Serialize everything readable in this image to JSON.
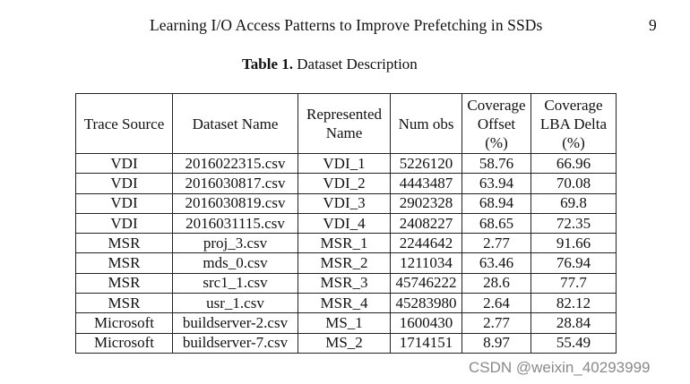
{
  "header": {
    "running_title": "Learning I/O Access Patterns to Improve Prefetching in SSDs",
    "page_number": "9"
  },
  "caption": {
    "label": "Table 1.",
    "text": "Dataset Description"
  },
  "table": {
    "columns": [
      [
        "Trace Source"
      ],
      [
        "Dataset Name"
      ],
      [
        "Represented",
        "Name"
      ],
      [
        "Num obs"
      ],
      [
        "Coverage",
        "Offset",
        "(%)"
      ],
      [
        "Coverage",
        "LBA Delta",
        "(%)"
      ]
    ],
    "rows": [
      [
        "VDI",
        "2016022315.csv",
        "VDI_1",
        "5226120",
        "58.76",
        "66.96"
      ],
      [
        "VDI",
        "2016030817.csv",
        "VDI_2",
        "4443487",
        "63.94",
        "70.08"
      ],
      [
        "VDI",
        "2016030819.csv",
        "VDI_3",
        "2902328",
        "68.94",
        "69.8"
      ],
      [
        "VDI",
        "2016031115.csv",
        "VDI_4",
        "2408227",
        "68.65",
        "72.35"
      ],
      [
        "MSR",
        "proj_3.csv",
        "MSR_1",
        "2244642",
        "2.77",
        "91.66"
      ],
      [
        "MSR",
        "mds_0.csv",
        "MSR_2",
        "1211034",
        "63.46",
        "76.94"
      ],
      [
        "MSR",
        "src1_1.csv",
        "MSR_3",
        "45746222",
        "28.6",
        "77.7"
      ],
      [
        "MSR",
        "usr_1.csv",
        "MSR_4",
        "45283980",
        "2.64",
        "82.12"
      ],
      [
        "Microsoft",
        "buildserver-2.csv",
        "MS_1",
        "1600430",
        "2.77",
        "28.84"
      ],
      [
        "Microsoft",
        "buildserver-7.csv",
        "MS_2",
        "1714151",
        "8.97",
        "55.49"
      ]
    ]
  },
  "watermark": "CSDN @weixin_40293999"
}
